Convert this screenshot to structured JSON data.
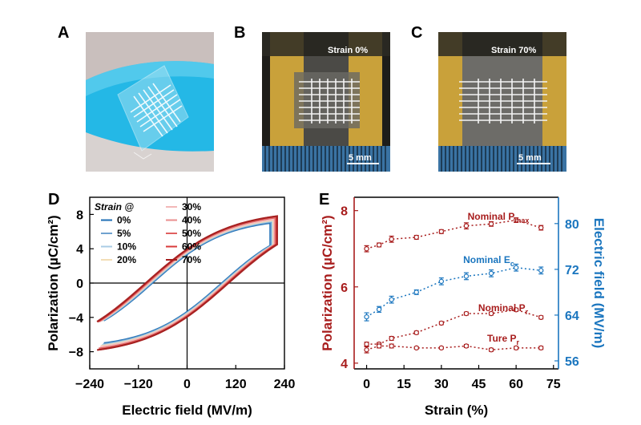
{
  "panels": {
    "a": {
      "label": "A"
    },
    "b": {
      "label": "B",
      "strain_text": "Strain 0%",
      "scale_text": "5 mm"
    },
    "c": {
      "label": "C",
      "strain_text": "Strain 70%",
      "scale_text": "5 mm"
    },
    "d": {
      "label": "D"
    },
    "e": {
      "label": "E"
    }
  },
  "colors": {
    "skin_blue": "#24b8e6",
    "copper_tape": "#c9a13a",
    "loop_blue": "#1f6fb5",
    "loop_red": "#d62a2a",
    "axis_red": "#a81d1d",
    "axis_blue": "#1b76bf"
  },
  "chart_data": [
    {
      "type": "line",
      "panel": "D",
      "xlabel": "Electric field (MV/m)",
      "ylabel": "Polarization (µC/cm²)",
      "xlim": [
        -240,
        240
      ],
      "ylim": [
        -10,
        10
      ],
      "xticks": [
        -240,
        -120,
        0,
        120,
        240
      ],
      "yticks": [
        -8,
        -4,
        0,
        4,
        8
      ],
      "legend": {
        "title": "Strain @",
        "placement": "top-left",
        "entries": [
          {
            "name": "0%",
            "color": "#1f6fb5"
          },
          {
            "name": "5%",
            "color": "#6fa2cf"
          },
          {
            "name": "10%",
            "color": "#a9cce5"
          },
          {
            "name": "20%",
            "color": "#f2ddb6"
          },
          {
            "name": "30%",
            "color": "#f2b8b8"
          },
          {
            "name": "40%",
            "color": "#ea8e8e"
          },
          {
            "name": "50%",
            "color": "#e06060"
          },
          {
            "name": "60%",
            "color": "#d83a3a"
          },
          {
            "name": "70%",
            "color": "#a31d1d"
          }
        ]
      },
      "loops": [
        {
          "strain": "0%",
          "ps": 7.0,
          "emax": 205,
          "pr": 4.7,
          "ec": 86
        },
        {
          "strain": "5%",
          "ps": 7.1,
          "emax": 207,
          "pr": 4.8,
          "ec": 88
        },
        {
          "strain": "10%",
          "ps": 7.2,
          "emax": 210,
          "pr": 4.8,
          "ec": 90
        },
        {
          "strain": "20%",
          "ps": 7.3,
          "emax": 212,
          "pr": 4.9,
          "ec": 92
        },
        {
          "strain": "30%",
          "ps": 7.4,
          "emax": 214,
          "pr": 5.0,
          "ec": 94
        },
        {
          "strain": "40%",
          "ps": 7.6,
          "emax": 216,
          "pr": 5.2,
          "ec": 96
        },
        {
          "strain": "50%",
          "ps": 7.6,
          "emax": 218,
          "pr": 5.2,
          "ec": 98
        },
        {
          "strain": "60%",
          "ps": 7.8,
          "emax": 220,
          "pr": 5.4,
          "ec": 100
        },
        {
          "strain": "70%",
          "ps": 7.8,
          "emax": 222,
          "pr": 5.3,
          "ec": 102
        }
      ]
    },
    {
      "type": "line",
      "panel": "E",
      "xlabel": "Strain (%)",
      "ylabel": "Polarization (µC/cm²)",
      "y2label": "Electric field (MV/m)",
      "x": [
        0,
        5,
        10,
        20,
        30,
        40,
        50,
        60,
        70
      ],
      "xticks": [
        0,
        15,
        30,
        45,
        60,
        75
      ],
      "xlim": [
        -5,
        77
      ],
      "ylim": [
        3.85,
        8.35
      ],
      "yticks": [
        4,
        6,
        8
      ],
      "y2lim": [
        54.6,
        84.6
      ],
      "y2ticks": [
        56,
        64,
        72,
        80
      ],
      "series": [
        {
          "name": "Nominal Pmax",
          "axis": "left",
          "color": "#a81d1d",
          "values": [
            7.0,
            7.1,
            7.25,
            7.3,
            7.45,
            7.6,
            7.65,
            7.75,
            7.55
          ],
          "errors": [
            0.08,
            0.05,
            0.08,
            0.05,
            0.05,
            0.08,
            0.06,
            0.06,
            0.06
          ]
        },
        {
          "name": "Nominal Ec",
          "axis": "right",
          "color": "#1b76bf",
          "values": [
            63.7,
            65.0,
            66.7,
            68.0,
            69.9,
            70.8,
            71.3,
            72.3,
            71.8
          ],
          "errors": [
            0.7,
            0.5,
            0.6,
            0.4,
            0.6,
            0.6,
            0.6,
            0.6,
            0.6
          ]
        },
        {
          "name": "Nominal Pr",
          "axis": "left",
          "color": "#a81d1d",
          "values": [
            4.5,
            4.5,
            4.65,
            4.8,
            5.05,
            5.3,
            5.3,
            5.4,
            5.2
          ],
          "errors": [
            0.05,
            0.04,
            0.05,
            0.04,
            0.04,
            0.04,
            0.04,
            0.04,
            0.04
          ]
        },
        {
          "name": "Ture Pr",
          "axis": "left",
          "color": "#a81d1d",
          "values": [
            4.35,
            4.45,
            4.45,
            4.4,
            4.4,
            4.45,
            4.35,
            4.4,
            4.4
          ],
          "errors": [
            0.08,
            0.05,
            0.05,
            0.03,
            0.03,
            0.04,
            0.04,
            0.04,
            0.04
          ]
        }
      ],
      "series_labels": [
        {
          "main": "Nominal P",
          "sub": "max"
        },
        {
          "main": "Nominal E",
          "sub": "c"
        },
        {
          "main": "Nominal P",
          "sub": "r"
        },
        {
          "main": "Ture P",
          "sub": "r"
        }
      ]
    }
  ]
}
